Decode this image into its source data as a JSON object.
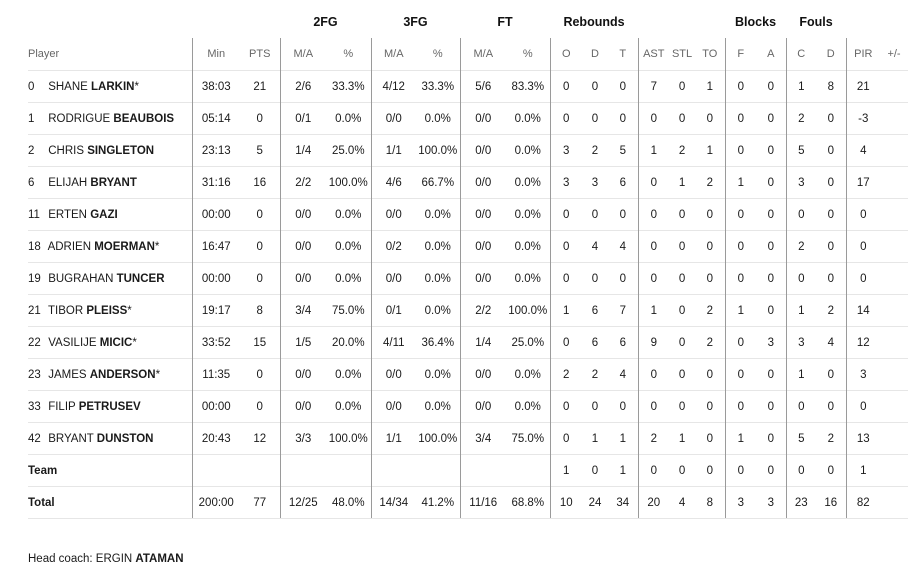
{
  "groups": {
    "fg2": "2FG",
    "fg3": "3FG",
    "ft": "FT",
    "reb": "Rebounds",
    "blk": "Blocks",
    "fouls": "Fouls"
  },
  "columns": [
    "Player",
    "Min",
    "PTS",
    "M/A",
    "%",
    "M/A",
    "%",
    "M/A",
    "%",
    "O",
    "D",
    "T",
    "AST",
    "STL",
    "TO",
    "F",
    "A",
    "C",
    "D",
    "PIR",
    "+/-"
  ],
  "players": [
    {
      "num": "0",
      "first": "SHANE",
      "last": "LARKIN",
      "starter": "*",
      "stats": [
        "38:03",
        "21",
        "2/6",
        "33.3%",
        "4/12",
        "33.3%",
        "5/6",
        "83.3%",
        "0",
        "0",
        "0",
        "7",
        "0",
        "1",
        "0",
        "0",
        "1",
        "8",
        "21",
        ""
      ]
    },
    {
      "num": "1",
      "first": "RODRIGUE",
      "last": "BEAUBOIS",
      "starter": "",
      "stats": [
        "05:14",
        "0",
        "0/1",
        "0.0%",
        "0/0",
        "0.0%",
        "0/0",
        "0.0%",
        "0",
        "0",
        "0",
        "0",
        "0",
        "0",
        "0",
        "0",
        "2",
        "0",
        "-3",
        ""
      ]
    },
    {
      "num": "2",
      "first": "CHRIS",
      "last": "SINGLETON",
      "starter": "",
      "stats": [
        "23:13",
        "5",
        "1/4",
        "25.0%",
        "1/1",
        "100.0%",
        "0/0",
        "0.0%",
        "3",
        "2",
        "5",
        "1",
        "2",
        "1",
        "0",
        "0",
        "5",
        "0",
        "4",
        ""
      ]
    },
    {
      "num": "6",
      "first": "ELIJAH",
      "last": "BRYANT",
      "starter": "",
      "stats": [
        "31:16",
        "16",
        "2/2",
        "100.0%",
        "4/6",
        "66.7%",
        "0/0",
        "0.0%",
        "3",
        "3",
        "6",
        "0",
        "1",
        "2",
        "1",
        "0",
        "3",
        "0",
        "17",
        ""
      ]
    },
    {
      "num": "11",
      "first": "ERTEN",
      "last": "GAZI",
      "starter": "",
      "stats": [
        "00:00",
        "0",
        "0/0",
        "0.0%",
        "0/0",
        "0.0%",
        "0/0",
        "0.0%",
        "0",
        "0",
        "0",
        "0",
        "0",
        "0",
        "0",
        "0",
        "0",
        "0",
        "0",
        ""
      ]
    },
    {
      "num": "18",
      "first": "ADRIEN",
      "last": "MOERMAN",
      "starter": "*",
      "stats": [
        "16:47",
        "0",
        "0/0",
        "0.0%",
        "0/2",
        "0.0%",
        "0/0",
        "0.0%",
        "0",
        "4",
        "4",
        "0",
        "0",
        "0",
        "0",
        "0",
        "2",
        "0",
        "0",
        ""
      ]
    },
    {
      "num": "19",
      "first": "BUGRAHAN",
      "last": "TUNCER",
      "starter": "",
      "stats": [
        "00:00",
        "0",
        "0/0",
        "0.0%",
        "0/0",
        "0.0%",
        "0/0",
        "0.0%",
        "0",
        "0",
        "0",
        "0",
        "0",
        "0",
        "0",
        "0",
        "0",
        "0",
        "0",
        ""
      ]
    },
    {
      "num": "21",
      "first": "TIBOR",
      "last": "PLEISS",
      "starter": "*",
      "stats": [
        "19:17",
        "8",
        "3/4",
        "75.0%",
        "0/1",
        "0.0%",
        "2/2",
        "100.0%",
        "1",
        "6",
        "7",
        "1",
        "0",
        "2",
        "1",
        "0",
        "1",
        "2",
        "14",
        ""
      ]
    },
    {
      "num": "22",
      "first": "VASILIJE",
      "last": "MICIC",
      "starter": "*",
      "stats": [
        "33:52",
        "15",
        "1/5",
        "20.0%",
        "4/11",
        "36.4%",
        "1/4",
        "25.0%",
        "0",
        "6",
        "6",
        "9",
        "0",
        "2",
        "0",
        "3",
        "3",
        "4",
        "12",
        ""
      ]
    },
    {
      "num": "23",
      "first": "JAMES",
      "last": "ANDERSON",
      "starter": "*",
      "stats": [
        "11:35",
        "0",
        "0/0",
        "0.0%",
        "0/0",
        "0.0%",
        "0/0",
        "0.0%",
        "2",
        "2",
        "4",
        "0",
        "0",
        "0",
        "0",
        "0",
        "1",
        "0",
        "3",
        ""
      ]
    },
    {
      "num": "33",
      "first": "FILIP",
      "last": "PETRUSEV",
      "starter": "",
      "stats": [
        "00:00",
        "0",
        "0/0",
        "0.0%",
        "0/0",
        "0.0%",
        "0/0",
        "0.0%",
        "0",
        "0",
        "0",
        "0",
        "0",
        "0",
        "0",
        "0",
        "0",
        "0",
        "0",
        ""
      ]
    },
    {
      "num": "42",
      "first": "BRYANT",
      "last": "DUNSTON",
      "starter": "",
      "stats": [
        "20:43",
        "12",
        "3/3",
        "100.0%",
        "1/1",
        "100.0%",
        "3/4",
        "75.0%",
        "0",
        "1",
        "1",
        "2",
        "1",
        "0",
        "1",
        "0",
        "5",
        "2",
        "13",
        ""
      ]
    }
  ],
  "team": {
    "label": "Team",
    "stats": [
      "",
      "",
      "",
      "",
      "",
      "",
      "",
      "",
      "1",
      "0",
      "1",
      "0",
      "0",
      "0",
      "0",
      "0",
      "0",
      "0",
      "1",
      ""
    ]
  },
  "total": {
    "label": "Total",
    "stats": [
      "200:00",
      "77",
      "12/25",
      "48.0%",
      "14/34",
      "41.2%",
      "11/16",
      "68.8%",
      "10",
      "24",
      "34",
      "20",
      "4",
      "8",
      "3",
      "3",
      "23",
      "16",
      "82",
      ""
    ]
  },
  "coach": {
    "label": "Head coach:",
    "first": "ERGIN",
    "last": "ATAMAN"
  }
}
